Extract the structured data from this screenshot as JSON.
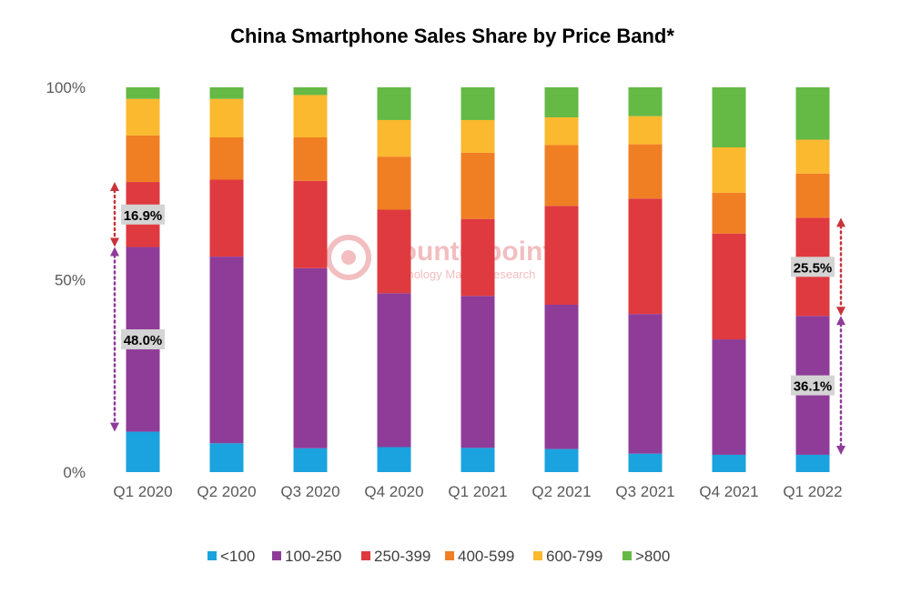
{
  "chart_data": {
    "type": "bar",
    "stacked": true,
    "title": "China Smartphone Sales Share by Price Band*",
    "categories": [
      "Q1 2020",
      "Q2 2020",
      "Q3 2020",
      "Q4 2020",
      "Q1 2021",
      "Q2 2021",
      "Q3 2021",
      "Q4 2021",
      "Q1 2022"
    ],
    "y_ticks": [
      "0%",
      "50%",
      "100%"
    ],
    "ylim": [
      0,
      100
    ],
    "legend_position": "bottom",
    "series": [
      {
        "name": "<100",
        "color": "#1aa3de",
        "values": [
          10.5,
          7.5,
          6.2,
          6.5,
          6.3,
          6.0,
          4.8,
          4.5,
          4.5
        ]
      },
      {
        "name": "100-250",
        "color": "#8e3c98",
        "values": [
          48.0,
          48.5,
          46.8,
          40.0,
          39.5,
          37.5,
          36.3,
          30.0,
          36.1
        ]
      },
      {
        "name": "250-399",
        "color": "#df3a3f",
        "values": [
          16.9,
          20.0,
          22.7,
          21.7,
          20.0,
          25.7,
          30.0,
          27.5,
          25.5
        ]
      },
      {
        "name": "400-599",
        "color": "#f07f23",
        "values": [
          12.1,
          11.0,
          11.3,
          13.8,
          17.2,
          15.8,
          14.1,
          10.6,
          11.5
        ]
      },
      {
        "name": "600-799",
        "color": "#fbb92f",
        "values": [
          9.5,
          10.0,
          11.0,
          9.5,
          8.5,
          7.2,
          7.3,
          11.8,
          8.8
        ]
      },
      {
        "name": ">800",
        "color": "#65b945",
        "values": [
          3.0,
          3.0,
          2.0,
          8.5,
          8.5,
          7.8,
          7.5,
          15.6,
          13.6
        ]
      }
    ],
    "annotations": [
      {
        "label": "16.9%",
        "category": "Q1 2020",
        "from": 58.5,
        "to": 75.4,
        "color": "#c8343b"
      },
      {
        "label": "48.0%",
        "category": "Q1 2020",
        "from": 10.5,
        "to": 58.5,
        "color": "#8e3c98"
      },
      {
        "label": "25.5%",
        "category": "Q1 2022",
        "from": 40.6,
        "to": 66.1,
        "color": "#c8343b"
      },
      {
        "label": "36.1%",
        "category": "Q1 2022",
        "from": 4.5,
        "to": 40.6,
        "color": "#8e3c98"
      }
    ]
  },
  "watermark": {
    "brand": "Counterpoint",
    "tagline": "Technology Market Research"
  }
}
